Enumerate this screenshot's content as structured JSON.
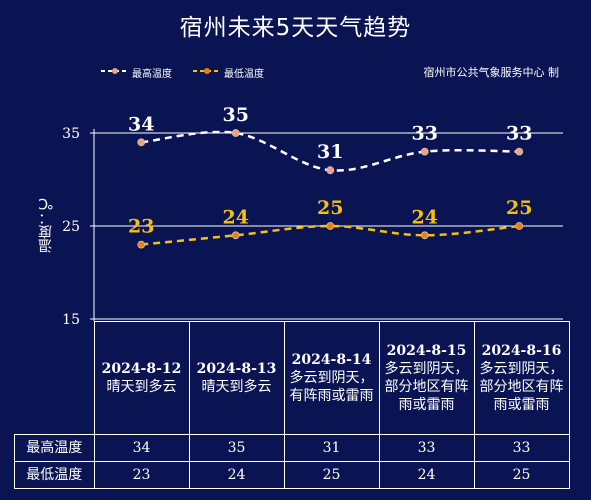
{
  "title": "宿州未来5天天气趋势",
  "source": "宿州市公共气象服务中心 制",
  "chart_data": {
    "type": "line",
    "title": "宿州未来5天天气趋势",
    "ylabel": "温度：℃",
    "ylim": [
      15,
      35
    ],
    "yticks": [
      15,
      25,
      35
    ],
    "categories": [
      "2024-8-12",
      "2024-8-13",
      "2024-8-14",
      "2024-8-15",
      "2024-8-16"
    ],
    "series": [
      {
        "name": "最高温度",
        "values": [
          34,
          35,
          31,
          33,
          33
        ],
        "color": "#ffffff",
        "marker": "#f2a07a"
      },
      {
        "name": "最低温度",
        "values": [
          23,
          24,
          25,
          24,
          25
        ],
        "color": "#f6c012",
        "marker": "#f07d0a"
      }
    ],
    "legend_position": "top-left",
    "gridlines": true
  },
  "table": {
    "days": [
      {
        "date": "2024-8-12",
        "desc": "晴天到多云"
      },
      {
        "date": "2024-8-13",
        "desc": "晴天到多云"
      },
      {
        "date": "2024-8-14",
        "desc": "多云到阴天，有阵雨或雷雨"
      },
      {
        "date": "2024-8-15",
        "desc": "多云到阴天，部分地区有阵雨或雷雨"
      },
      {
        "date": "2024-8-16",
        "desc": "多云到阴天，部分地区有阵雨或雷雨"
      }
    ],
    "rows": [
      {
        "label": "最高温度",
        "values": [
          "34",
          "35",
          "31",
          "33",
          "33"
        ]
      },
      {
        "label": "最低温度",
        "values": [
          "23",
          "24",
          "25",
          "24",
          "25"
        ]
      }
    ]
  }
}
